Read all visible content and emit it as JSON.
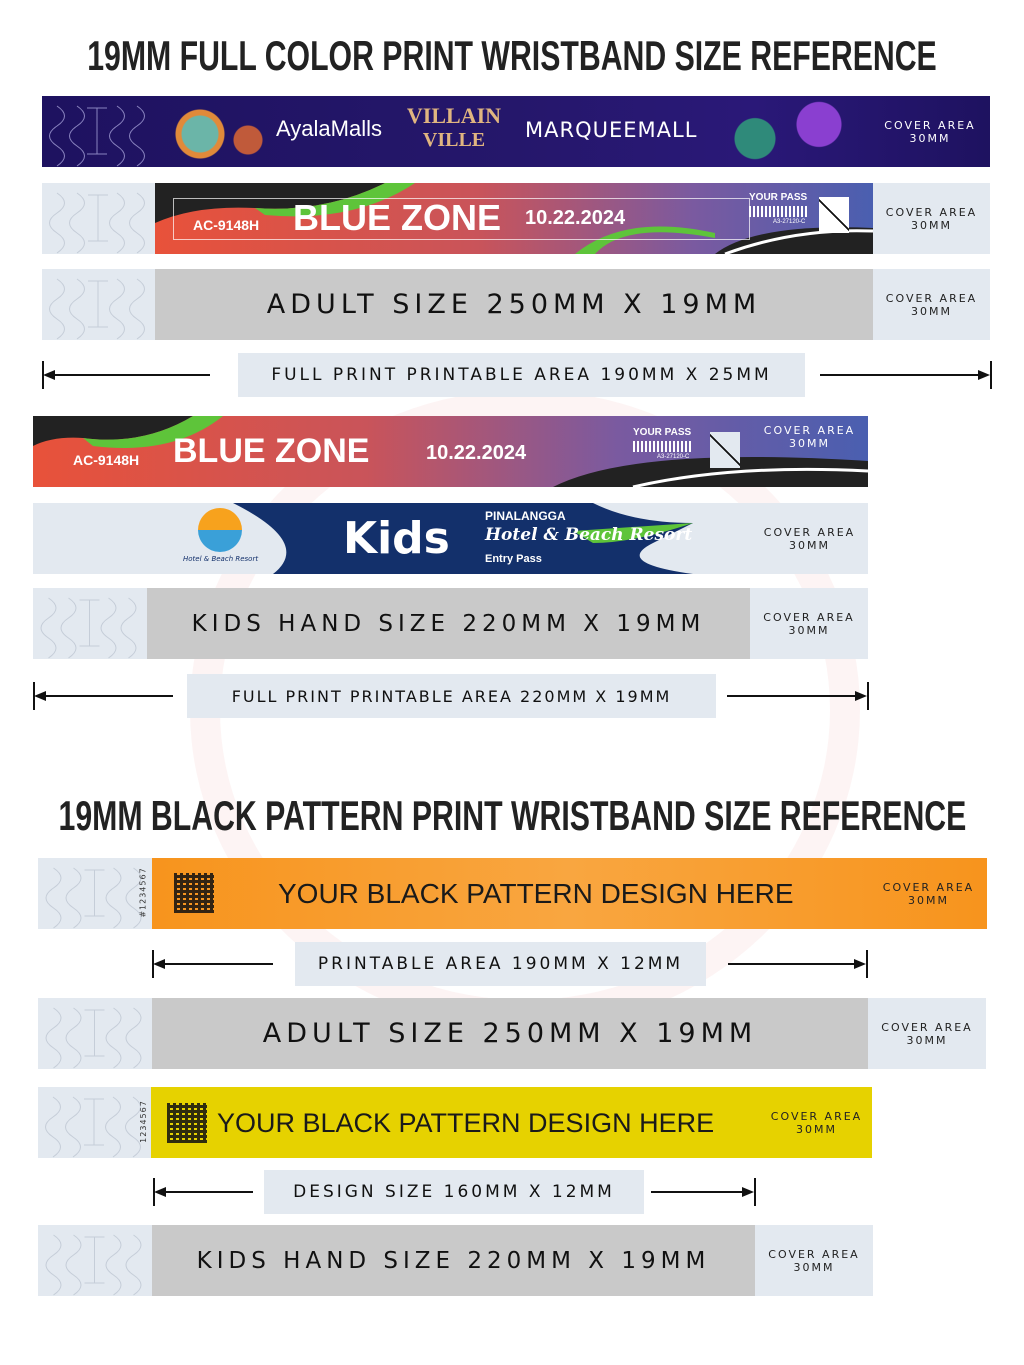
{
  "section1": {
    "title": "19MM FULL COLOR PRINT WRISTBAND SIZE REFERENCE",
    "band_villain": {
      "brand1": "AyalaMalls",
      "logo_top": "VILLAIN",
      "logo_bottom": "VILLE",
      "brand2": "MARQUEEMALL",
      "cover": [
        "COVER AREA",
        "30MM"
      ],
      "color": "#1e1260"
    },
    "band_bluezone": {
      "code": "AC-9148H",
      "zone": "BLUE ZONE",
      "date": "10.22.2024",
      "pass": "YOUR PASS",
      "barcode_text": "A3-27120-C",
      "cover": [
        "COVER AREA",
        "30MM"
      ]
    },
    "band_adult": {
      "label": "ADULT SIZE 250MM X 19MM",
      "cover": [
        "COVER AREA",
        "30MM"
      ]
    },
    "dimension_adult": "FULL PRINT PRINTABLE AREA 190MM X 25MM",
    "band_bluezone_kids": {
      "code": "AC-9148H",
      "zone": "BLUE ZONE",
      "date": "10.22.2024",
      "pass": "YOUR PASS",
      "barcode_text": "A3-27120-C",
      "cover": [
        "COVER AREA",
        "30MM"
      ]
    },
    "band_kids": {
      "logo_name": "PINALANGGA",
      "logo_sub": "Hotel & Beach Resort",
      "title": "Kids",
      "brand": "PINALANGGA",
      "subtitle": "Hotel & Beach Resort",
      "entry": "Entry Pass",
      "cover": [
        "COVER AREA",
        "30MM"
      ]
    },
    "band_kids_size": {
      "label": "KIDS HAND SIZE 220MM X 19MM",
      "cover": [
        "COVER AREA",
        "30MM"
      ]
    },
    "dimension_kids": "FULL PRINT PRINTABLE AREA 220MM X 19MM"
  },
  "section2": {
    "title": "19MM BLACK PATTERN PRINT WRISTBAND SIZE REFERENCE",
    "band_orange": {
      "serial": "#1234567",
      "text": "YOUR BLACK PATTERN DESIGN HERE",
      "cover": [
        "COVER AREA",
        "30MM"
      ],
      "color": "#f7941d"
    },
    "dimension_printable": "PRINTABLE AREA 190MM X 12MM",
    "band_adult": {
      "label": "ADULT SIZE 250MM X 19MM",
      "cover": [
        "COVER AREA",
        "30MM"
      ]
    },
    "band_yellow": {
      "serial": "1234567",
      "text": "YOUR BLACK PATTERN DESIGN HERE",
      "cover": [
        "COVER AREA",
        "30MM"
      ],
      "color": "#e6d200"
    },
    "dimension_design": "DESIGN SIZE 160MM X 12MM",
    "band_kids": {
      "label": "KIDS HAND SIZE 220MM X 19MM",
      "cover": [
        "COVER AREA",
        "30MM"
      ]
    }
  },
  "colors": {
    "tab": "#e3e9f0",
    "gray": "#c9c9c9",
    "navy": "#13306b",
    "green": "#5ec43a",
    "red": "#e8523a"
  }
}
